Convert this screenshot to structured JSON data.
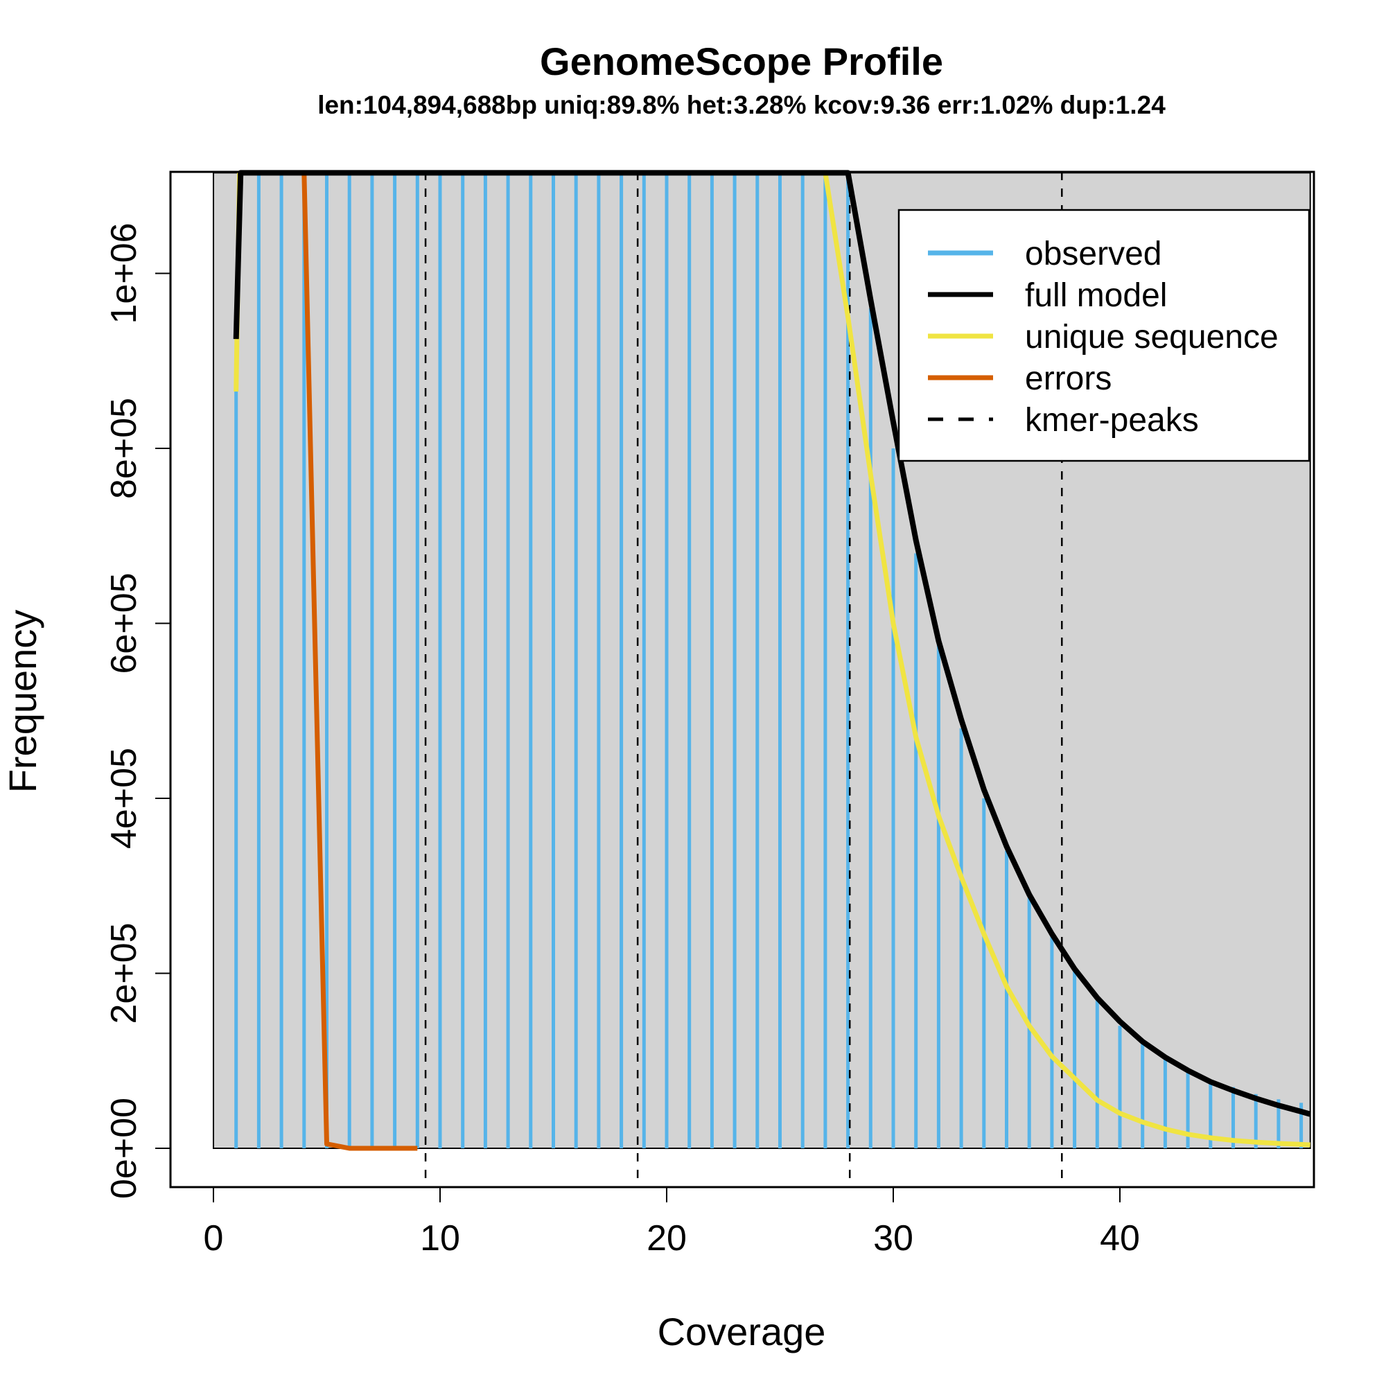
{
  "chart_data": {
    "type": "line",
    "title": "GenomeScope Profile",
    "subtitle": "len:104,894,688bp uniq:89.8% het:3.28% kcov:9.36 err:1.02% dup:1.24",
    "xlabel": "Coverage",
    "ylabel": "Frequency",
    "xlim": [
      0,
      48.4
    ],
    "ylim": [
      0,
      1115000
    ],
    "x_ticks": [
      0,
      10,
      20,
      30,
      40
    ],
    "x_tick_labels": [
      "0",
      "10",
      "20",
      "30",
      "40"
    ],
    "y_ticks": [
      0,
      200000,
      400000,
      600000,
      800000,
      1000000
    ],
    "y_tick_labels": [
      "0e+00",
      "2e+05",
      "4e+05",
      "6e+05",
      "8e+05",
      "1e+06"
    ],
    "grid": false,
    "legend_position": "top-right",
    "background_color": "#d3d3d3",
    "series": [
      {
        "name": "observed",
        "style": "histogram",
        "color": "#56b4e9",
        "x": [
          1,
          2,
          3,
          4,
          5,
          6,
          7,
          8,
          9,
          10,
          11,
          12,
          13,
          14,
          15,
          16,
          17,
          18,
          19,
          20,
          21,
          22,
          23,
          24,
          25,
          26,
          27,
          28,
          29,
          30,
          31,
          32,
          33,
          34,
          35,
          36,
          37,
          38,
          39,
          40,
          41,
          42,
          43,
          44,
          45,
          46,
          47,
          48
        ],
        "values": [
          865000,
          1115000,
          1115000,
          1115000,
          1115000,
          1115000,
          1115000,
          1115000,
          1115000,
          1115000,
          1115000,
          1115000,
          1115000,
          1115000,
          1115000,
          1115000,
          1115000,
          1115000,
          1115000,
          1115000,
          1115000,
          1115000,
          1115000,
          1115000,
          1115000,
          1115000,
          1115000,
          1115000,
          960000,
          800000,
          680000,
          580000,
          480000,
          400000,
          340000,
          290000,
          245000,
          205000,
          170000,
          140000,
          120000,
          102000,
          88000,
          78000,
          70000,
          62000,
          56000,
          52000
        ]
      },
      {
        "name": "full model",
        "style": "line",
        "color": "#000000",
        "x": [
          1,
          1.2,
          27.9,
          28,
          29,
          30,
          31,
          32,
          33,
          34,
          35,
          36,
          37,
          38,
          39,
          40,
          41,
          42,
          43,
          44,
          45,
          46,
          47,
          48,
          48.4
        ],
        "values": [
          925000,
          1115000,
          1115000,
          1115000,
          970000,
          830000,
          695000,
          580000,
          490000,
          410000,
          345000,
          290000,
          245000,
          205000,
          172000,
          145000,
          122000,
          104000,
          89000,
          76000,
          66000,
          57000,
          49000,
          42000,
          39000
        ]
      },
      {
        "name": "unique sequence",
        "style": "line",
        "color": "#f0e442",
        "x": [
          1,
          1.15,
          27,
          28,
          29,
          30,
          31,
          32,
          33,
          34,
          35,
          36,
          37,
          38,
          39,
          40,
          41,
          42,
          43,
          44,
          45,
          46,
          47,
          48,
          48.4
        ],
        "values": [
          865000,
          1115000,
          1115000,
          950000,
          770000,
          600000,
          470000,
          380000,
          310000,
          245000,
          185000,
          140000,
          105000,
          80000,
          55000,
          40000,
          30000,
          22000,
          16000,
          12000,
          9000,
          7000,
          5500,
          4500,
          4000
        ]
      },
      {
        "name": "errors",
        "style": "line",
        "color": "#d55e00",
        "x": [
          4,
          5,
          6,
          7,
          8,
          9
        ],
        "values": [
          1115000,
          5000,
          0,
          0,
          0,
          0
        ]
      },
      {
        "name": "kmer-peaks",
        "style": "dashed-vline",
        "color": "#000000",
        "x": [
          9.36,
          18.72,
          28.08,
          37.44
        ]
      }
    ]
  }
}
